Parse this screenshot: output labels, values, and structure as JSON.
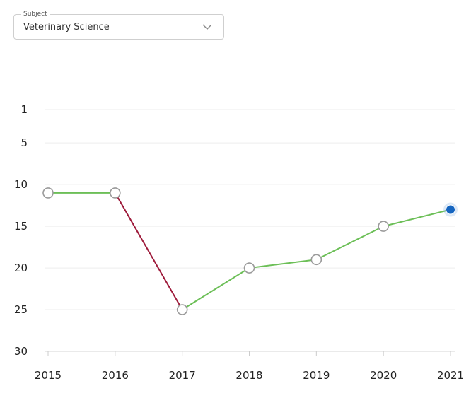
{
  "subject": {
    "label": "Subject",
    "value": "Veterinary Science"
  },
  "chart_data": {
    "type": "line",
    "x": [
      "2015",
      "2016",
      "2017",
      "2018",
      "2019",
      "2020",
      "2021"
    ],
    "series": [
      {
        "values": [
          11,
          11,
          25,
          20,
          19,
          15,
          13
        ]
      }
    ],
    "y_axis": {
      "reversed": true,
      "ticks": [
        1,
        5,
        10,
        15,
        20,
        25,
        30
      ],
      "range": [
        1,
        30
      ]
    },
    "grid": true,
    "colors": {
      "rise": "#6cbf57",
      "fall": "#9e1b3b",
      "marker_fill": "#ffffff",
      "marker_stroke": "#9a9a9a",
      "current_marker": "#1565c0",
      "grid": "#eeeeee"
    }
  }
}
